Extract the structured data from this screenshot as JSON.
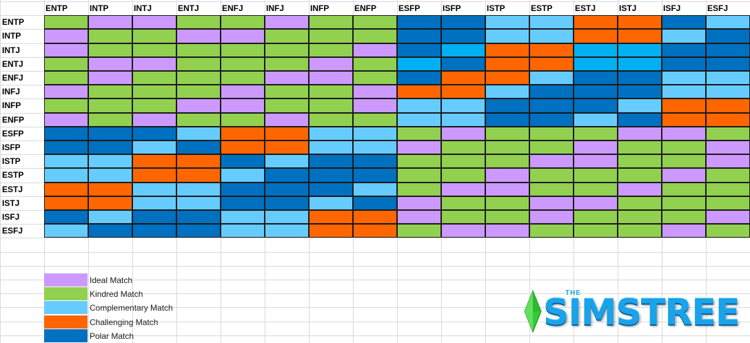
{
  "types": [
    "ENTP",
    "INTP",
    "INTJ",
    "ENTJ",
    "ENFJ",
    "INFJ",
    "INFP",
    "ENFP",
    "ESFP",
    "ISFP",
    "ISTP",
    "ESTP",
    "ESTJ",
    "ISTJ",
    "ISFJ",
    "ESFJ"
  ],
  "categories": {
    "I": {
      "label": "Ideal Match",
      "color": "#cc99ff"
    },
    "K": {
      "label": "Kindred Match",
      "color": "#92d050"
    },
    "C": {
      "label": "Complementary Match",
      "color": "#66ccff"
    },
    "B": {
      "label": "Complementary Match",
      "color": "#00b0f0"
    },
    "H": {
      "label": "Challenging Match",
      "color": "#ff6600"
    },
    "P": {
      "label": "Polar Match",
      "color": "#0070c0"
    }
  },
  "legend": [
    {
      "label": "Ideal Match",
      "color": "#cc99ff"
    },
    {
      "label": "Kindred Match",
      "color": "#92d050"
    },
    {
      "label": "Complementary Match",
      "color": "#66ccff"
    },
    {
      "label": "Challenging Match",
      "color": "#ff6600"
    },
    {
      "label": "Polar Match",
      "color": "#0070c0"
    }
  ],
  "matrix": [
    [
      "K",
      "I",
      "I",
      "K",
      "K",
      "I",
      "K",
      "K",
      "P",
      "P",
      "C",
      "C",
      "H",
      "H",
      "P",
      "C"
    ],
    [
      "I",
      "K",
      "K",
      "I",
      "I",
      "K",
      "K",
      "K",
      "P",
      "P",
      "C",
      "C",
      "H",
      "H",
      "C",
      "P"
    ],
    [
      "I",
      "K",
      "K",
      "K",
      "K",
      "K",
      "K",
      "I",
      "P",
      "B",
      "H",
      "H",
      "B",
      "B",
      "P",
      "P"
    ],
    [
      "K",
      "I",
      "I",
      "K",
      "K",
      "K",
      "I",
      "K",
      "B",
      "P",
      "H",
      "H",
      "B",
      "B",
      "P",
      "P"
    ],
    [
      "K",
      "I",
      "K",
      "K",
      "K",
      "I",
      "I",
      "K",
      "P",
      "H",
      "H",
      "C",
      "P",
      "P",
      "C",
      "C"
    ],
    [
      "I",
      "K",
      "K",
      "K",
      "I",
      "K",
      "K",
      "I",
      "H",
      "H",
      "C",
      "P",
      "P",
      "P",
      "C",
      "C"
    ],
    [
      "K",
      "K",
      "K",
      "I",
      "I",
      "K",
      "K",
      "I",
      "C",
      "C",
      "P",
      "P",
      "P",
      "C",
      "H",
      "H"
    ],
    [
      "I",
      "K",
      "I",
      "K",
      "K",
      "I",
      "K",
      "K",
      "C",
      "C",
      "P",
      "P",
      "C",
      "P",
      "H",
      "H"
    ],
    [
      "P",
      "P",
      "P",
      "C",
      "H",
      "H",
      "C",
      "C",
      "K",
      "I",
      "K",
      "K",
      "K",
      "I",
      "I",
      "K"
    ],
    [
      "P",
      "P",
      "C",
      "P",
      "H",
      "H",
      "C",
      "C",
      "I",
      "K",
      "K",
      "K",
      "I",
      "K",
      "K",
      "I"
    ],
    [
      "C",
      "C",
      "H",
      "H",
      "P",
      "C",
      "P",
      "P",
      "K",
      "K",
      "K",
      "I",
      "I",
      "K",
      "K",
      "I"
    ],
    [
      "C",
      "C",
      "H",
      "H",
      "C",
      "P",
      "P",
      "P",
      "K",
      "K",
      "I",
      "K",
      "K",
      "K",
      "I",
      "K"
    ],
    [
      "H",
      "H",
      "C",
      "C",
      "P",
      "P",
      "P",
      "C",
      "K",
      "I",
      "I",
      "K",
      "K",
      "I",
      "K",
      "K"
    ],
    [
      "H",
      "H",
      "C",
      "C",
      "P",
      "P",
      "C",
      "P",
      "I",
      "K",
      "K",
      "I",
      "I",
      "K",
      "K",
      "K"
    ],
    [
      "P",
      "C",
      "P",
      "P",
      "C",
      "C",
      "H",
      "H",
      "I",
      "K",
      "K",
      "I",
      "K",
      "K",
      "K",
      "I"
    ],
    [
      "C",
      "P",
      "P",
      "P",
      "C",
      "C",
      "H",
      "H",
      "K",
      "I",
      "I",
      "K",
      "K",
      "K",
      "I",
      "K"
    ]
  ],
  "logo": {
    "prefix": "THE",
    "text": "SIMSTREE",
    "accent": "#1aa3e8"
  }
}
